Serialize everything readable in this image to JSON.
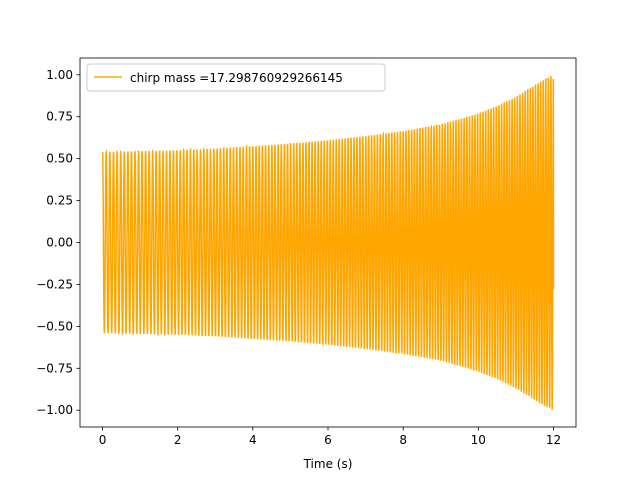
{
  "chart_data": {
    "type": "line",
    "title": "",
    "xlabel": "Time (s)",
    "ylabel": "",
    "xlim": [
      -0.6,
      12.6
    ],
    "ylim": [
      -1.1,
      1.1
    ],
    "x_ticks": [
      0,
      2,
      4,
      6,
      8,
      10,
      12
    ],
    "x_tick_labels": [
      "0",
      "2",
      "4",
      "6",
      "8",
      "10",
      "12"
    ],
    "y_ticks": [
      1.0,
      0.75,
      0.5,
      0.25,
      0.0,
      -0.25,
      -0.5,
      -0.75,
      -1.0
    ],
    "y_tick_labels": [
      "1.00",
      "0.75",
      "0.50",
      "0.25",
      "0.00",
      "−0.25",
      "−0.50",
      "−0.75",
      "−1.00"
    ],
    "grid": false,
    "legend_position": "upper-left",
    "series": [
      {
        "name": "chirp mass =17.298760929266145",
        "color": "#ffa500",
        "x_range": [
          0,
          12
        ],
        "envelope": {
          "x": [
            0,
            1,
            2,
            3,
            4,
            5,
            6,
            7,
            8,
            9,
            10,
            10.5,
            11,
            11.5,
            11.8,
            12
          ],
          "amplitude": [
            0.54,
            0.545,
            0.55,
            0.56,
            0.575,
            0.59,
            0.61,
            0.635,
            0.665,
            0.705,
            0.77,
            0.815,
            0.87,
            0.94,
            0.98,
            1.0
          ]
        },
        "approx_oscillation_cycles": 150,
        "end_value": -0.28
      }
    ]
  }
}
